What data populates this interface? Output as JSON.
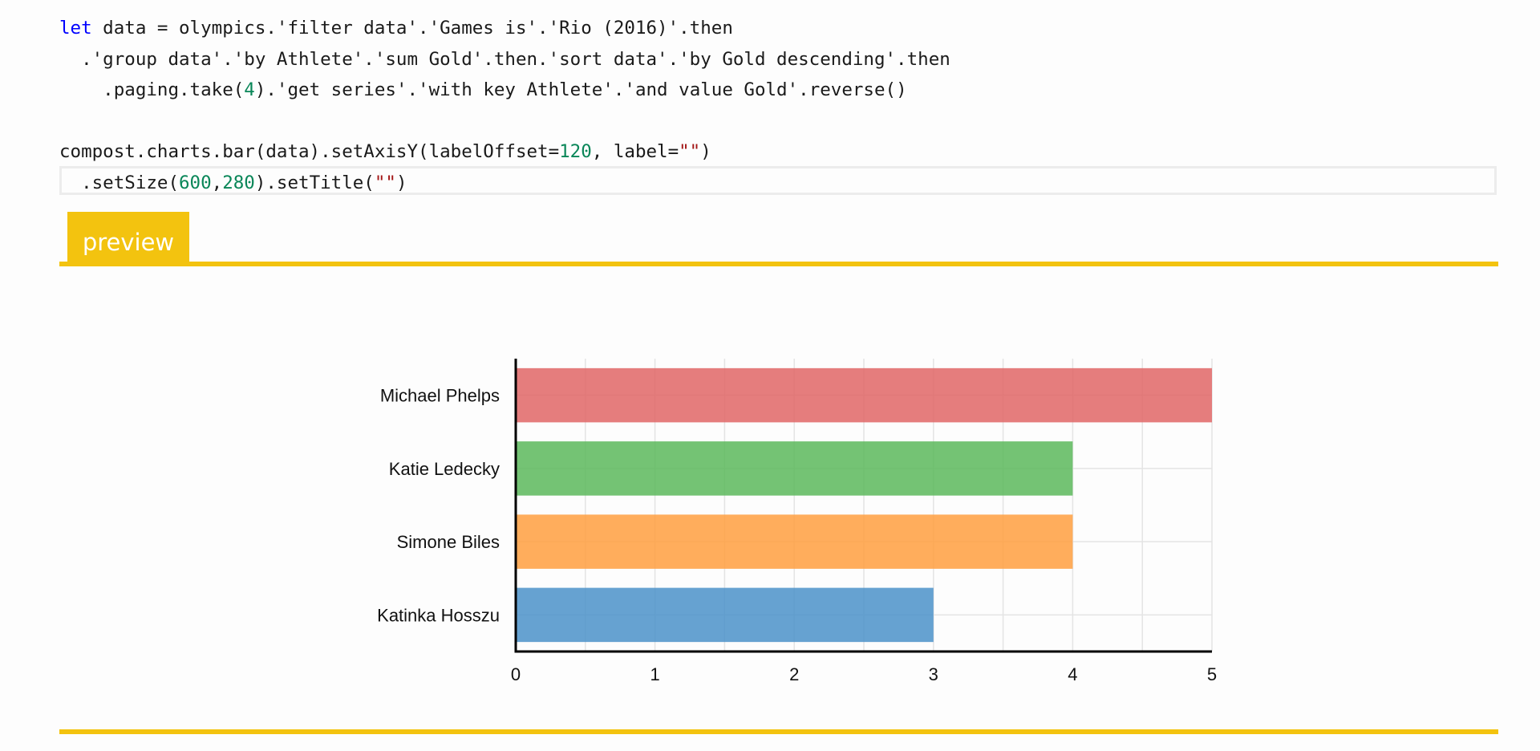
{
  "code": {
    "lines": [
      [
        {
          "t": "let",
          "c": "kw"
        },
        {
          "t": " data = olympics.'filter data'.'Games is'.'Rio (2016)'.then",
          "c": ""
        }
      ],
      [
        {
          "t": "  .'group data'.'by Athlete'.'sum Gold'.then.'sort data'.'by Gold descending'.then",
          "c": ""
        }
      ],
      [
        {
          "t": "    .paging.take(",
          "c": ""
        },
        {
          "t": "4",
          "c": "num"
        },
        {
          "t": ").'get series'.'with key Athlete'.'and value Gold'.reverse()",
          "c": ""
        }
      ],
      [
        {
          "t": "",
          "c": ""
        }
      ],
      [
        {
          "t": "compost.charts.bar(data).setAxisY(labelOffset=",
          "c": ""
        },
        {
          "t": "120",
          "c": "num"
        },
        {
          "t": ", label=",
          "c": ""
        },
        {
          "t": "\"\"",
          "c": "str"
        },
        {
          "t": ")",
          "c": ""
        }
      ],
      [
        {
          "t": "  .setSize(",
          "c": ""
        },
        {
          "t": "600",
          "c": "num"
        },
        {
          "t": ",",
          "c": ""
        },
        {
          "t": "280",
          "c": "num"
        },
        {
          "t": ").setTitle(",
          "c": ""
        },
        {
          "t": "\"\"",
          "c": "str"
        },
        {
          "t": ")",
          "c": ""
        }
      ]
    ]
  },
  "preview_tab": {
    "label": "preview"
  },
  "chart_data": {
    "type": "bar",
    "orientation": "horizontal",
    "categories": [
      "Michael Phelps",
      "Katie Ledecky",
      "Simone Biles",
      "Katinka Hosszu"
    ],
    "values": [
      5,
      4,
      4,
      3
    ],
    "colors": [
      "#e06666",
      "#5cb85c",
      "#ff9f40",
      "#4b92c9"
    ],
    "xlim": [
      0,
      5
    ],
    "xticks": [
      "0",
      "1",
      "2",
      "3",
      "4",
      "5"
    ],
    "title": "",
    "xlabel": "",
    "ylabel": "",
    "grid": true
  }
}
